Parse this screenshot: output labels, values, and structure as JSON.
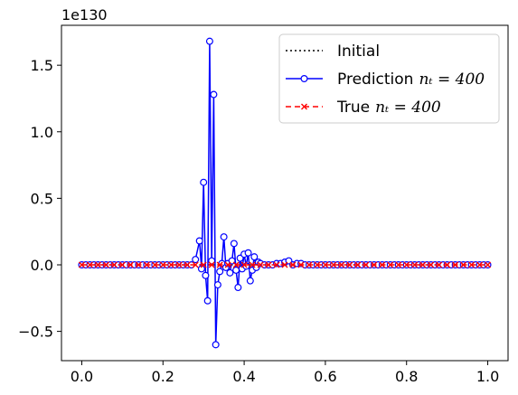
{
  "chart_data": {
    "type": "line",
    "title": "",
    "xlabel": "",
    "ylabel": "",
    "offset_label": "1e130",
    "xlim": [
      -0.05,
      1.05
    ],
    "ylim": [
      -0.72,
      1.8
    ],
    "x_ticks": [
      0.0,
      0.2,
      0.4,
      0.6,
      0.8,
      1.0
    ],
    "x_tick_labels": [
      "0.0",
      "0.2",
      "0.4",
      "0.6",
      "0.8",
      "1.0"
    ],
    "y_ticks": [
      -0.5,
      0.0,
      0.5,
      1.0,
      1.5
    ],
    "y_tick_labels": [
      "−0.5",
      "0.0",
      "0.5",
      "1.0",
      "1.5"
    ],
    "grid": false,
    "legend_placement": "top-right",
    "legend": [
      {
        "label": "Initial",
        "math": "",
        "color": "#000000",
        "linestyle": "dotted",
        "marker": "none"
      },
      {
        "label": "Prediction",
        "math": "nₜ = 400",
        "color": "#0000ff",
        "linestyle": "solid",
        "marker": "circle"
      },
      {
        "label": "True",
        "math": "nₜ = 400",
        "color": "#ff0000",
        "linestyle": "dashed",
        "marker": "x"
      }
    ],
    "series": [
      {
        "name": "Initial",
        "color": "#000000",
        "x": [
          0.0,
          1.0
        ],
        "y": [
          0.0,
          0.0
        ]
      },
      {
        "name": "Prediction",
        "color": "#0000ff",
        "x": [
          0.0,
          0.01,
          0.02,
          0.03,
          0.04,
          0.05,
          0.06,
          0.07,
          0.08,
          0.09,
          0.1,
          0.11,
          0.12,
          0.13,
          0.14,
          0.15,
          0.16,
          0.17,
          0.18,
          0.19,
          0.2,
          0.21,
          0.22,
          0.23,
          0.24,
          0.25,
          0.26,
          0.27,
          0.28,
          0.29,
          0.295,
          0.3,
          0.305,
          0.31,
          0.315,
          0.32,
          0.325,
          0.33,
          0.335,
          0.34,
          0.345,
          0.35,
          0.355,
          0.36,
          0.365,
          0.37,
          0.375,
          0.38,
          0.385,
          0.39,
          0.395,
          0.4,
          0.405,
          0.41,
          0.415,
          0.42,
          0.425,
          0.43,
          0.435,
          0.44,
          0.45,
          0.46,
          0.47,
          0.48,
          0.49,
          0.5,
          0.51,
          0.52,
          0.53,
          0.54,
          0.55,
          0.56,
          0.57,
          0.58,
          0.59,
          0.6,
          0.61,
          0.62,
          0.63,
          0.64,
          0.65,
          0.66,
          0.67,
          0.68,
          0.69,
          0.7,
          0.71,
          0.72,
          0.73,
          0.74,
          0.75,
          0.76,
          0.77,
          0.78,
          0.79,
          0.8,
          0.81,
          0.82,
          0.83,
          0.84,
          0.85,
          0.86,
          0.87,
          0.88,
          0.89,
          0.9,
          0.91,
          0.92,
          0.93,
          0.94,
          0.95,
          0.96,
          0.97,
          0.98,
          0.99,
          1.0
        ],
        "y": [
          0,
          0,
          0,
          0,
          0,
          0,
          0,
          0,
          0,
          0,
          0,
          0,
          0,
          0,
          0,
          0,
          0,
          0,
          0,
          0,
          0,
          0,
          0,
          0,
          0,
          0,
          0,
          0,
          0.04,
          0.18,
          -0.03,
          0.62,
          -0.08,
          -0.27,
          1.68,
          0.03,
          1.28,
          -0.6,
          -0.15,
          -0.05,
          0.01,
          0.21,
          -0.02,
          0.01,
          -0.06,
          0.03,
          0.16,
          -0.04,
          -0.17,
          0.05,
          -0.03,
          0.08,
          -0.01,
          0.09,
          -0.12,
          -0.04,
          0.06,
          -0.02,
          0.02,
          0.01,
          0,
          0,
          0,
          0.01,
          0.01,
          0.02,
          0.03,
          0,
          0.01,
          0.01,
          0,
          0,
          0,
          0,
          0,
          0,
          0,
          0,
          0,
          0,
          0,
          0,
          0,
          0,
          0,
          0,
          0,
          0,
          0,
          0,
          0,
          0,
          0,
          0,
          0,
          0,
          0,
          0,
          0,
          0,
          0,
          0,
          0,
          0,
          0,
          0,
          0,
          0,
          0,
          0,
          0,
          0,
          0,
          0,
          0,
          0
        ]
      },
      {
        "name": "True",
        "color": "#ff0000",
        "x": [
          0.0,
          0.02,
          0.04,
          0.06,
          0.08,
          0.1,
          0.12,
          0.14,
          0.16,
          0.18,
          0.2,
          0.22,
          0.24,
          0.26,
          0.28,
          0.3,
          0.32,
          0.34,
          0.36,
          0.38,
          0.4,
          0.42,
          0.44,
          0.46,
          0.48,
          0.5,
          0.52,
          0.54,
          0.56,
          0.58,
          0.6,
          0.62,
          0.64,
          0.66,
          0.68,
          0.7,
          0.72,
          0.74,
          0.76,
          0.78,
          0.8,
          0.82,
          0.84,
          0.86,
          0.88,
          0.9,
          0.92,
          0.94,
          0.96,
          0.98,
          1.0
        ],
        "y": [
          0,
          0,
          0,
          0,
          0,
          0,
          0,
          0,
          0,
          0,
          0,
          0,
          0,
          0,
          0,
          0,
          0,
          0,
          0,
          0,
          0,
          0,
          0,
          0,
          0,
          0,
          0,
          0,
          0,
          0,
          0,
          0,
          0,
          0,
          0,
          0,
          0,
          0,
          0,
          0,
          0,
          0,
          0,
          0,
          0,
          0,
          0,
          0,
          0,
          0,
          0
        ]
      }
    ]
  }
}
